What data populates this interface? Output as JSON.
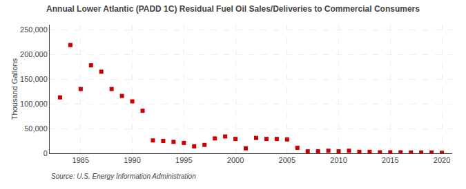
{
  "chart_data": {
    "type": "scatter",
    "title": "Annual Lower Atlantic (PADD 1C) Residual Fuel Oil Sales/Deliveries to Commercial Consumers",
    "ylabel": "Thousand Gallons",
    "annotations": [
      "Source: U.S. Energy Information Administration"
    ],
    "x": [
      1983,
      1984,
      1985,
      1986,
      1987,
      1988,
      1989,
      1990,
      1991,
      1992,
      1993,
      1994,
      1995,
      1996,
      1997,
      1998,
      1999,
      2000,
      2001,
      2002,
      2003,
      2004,
      2005,
      2006,
      2007,
      2008,
      2009,
      2010,
      2011,
      2012,
      2013,
      2014,
      2015,
      2016,
      2017,
      2018,
      2019,
      2020
    ],
    "values": [
      113000,
      219000,
      130000,
      178000,
      165000,
      130000,
      116000,
      105000,
      86000,
      26000,
      25000,
      23000,
      21000,
      14000,
      17000,
      30000,
      34000,
      29000,
      10000,
      31000,
      29000,
      29000,
      28000,
      11000,
      4000,
      4000,
      5000,
      4000,
      5000,
      3000,
      3000,
      2000,
      2000,
      2000,
      1500,
      1500,
      1500,
      1000
    ],
    "color": "#cc0000",
    "marker": "square",
    "xlim": [
      1982,
      2021
    ],
    "xticks": [
      1985,
      1990,
      1995,
      2000,
      2005,
      2010,
      2015,
      2020
    ],
    "ylim": [
      0,
      260000
    ],
    "yticks": [
      0,
      {
        "value": 50000,
        "label": "50,000"
      },
      {
        "value": 100000,
        "label": "100,000"
      },
      {
        "value": 150000,
        "label": "150,000"
      },
      {
        "value": 200000,
        "label": "200,000"
      },
      {
        "value": 250000,
        "label": "250,000"
      }
    ],
    "grid": true
  }
}
